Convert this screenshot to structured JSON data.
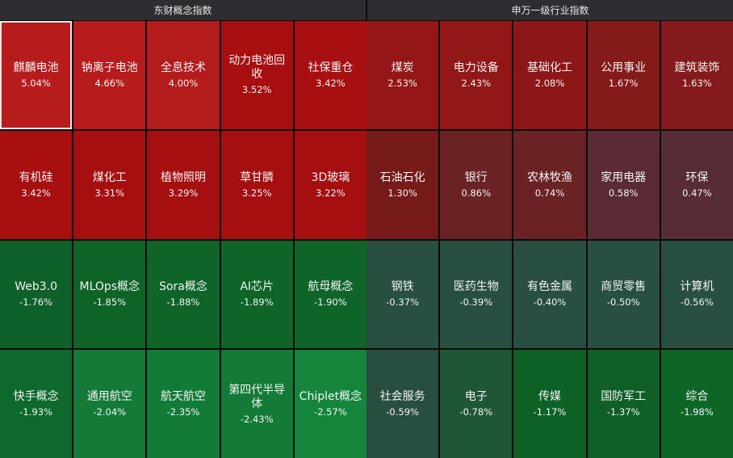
{
  "chart_data": [
    {
      "type": "heatmap",
      "title": "东财概念指数",
      "layout": {
        "rows": 4,
        "cols": 5
      },
      "cells": [
        {
          "name": "麒麟电池",
          "value": 5.04,
          "label": "5.04%",
          "color": "#b71c1c",
          "selected": true
        },
        {
          "name": "钠离子电池",
          "value": 4.66,
          "label": "4.66%",
          "color": "#b71b1c"
        },
        {
          "name": "全息技术",
          "value": 4.0,
          "label": "4.00%",
          "color": "#b41b1b"
        },
        {
          "name": "动力电池回收",
          "value": 3.52,
          "label": "3.52%",
          "color": "#a80f10"
        },
        {
          "name": "社保重仓",
          "value": 3.42,
          "label": "3.42%",
          "color": "#a70f10"
        },
        {
          "name": "有机硅",
          "value": 3.42,
          "label": "3.42%",
          "color": "#a70f10"
        },
        {
          "name": "煤化工",
          "value": 3.31,
          "label": "3.31%",
          "color": "#a60f10"
        },
        {
          "name": "植物照明",
          "value": 3.29,
          "label": "3.29%",
          "color": "#a60f10"
        },
        {
          "name": "草甘膦",
          "value": 3.25,
          "label": "3.25%",
          "color": "#a50f10"
        },
        {
          "name": "3D玻璃",
          "value": 3.22,
          "label": "3.22%",
          "color": "#a50f10"
        },
        {
          "name": "Web3.0",
          "value": -1.76,
          "label": "-1.76%",
          "color": "#0e6128"
        },
        {
          "name": "MLOps概念",
          "value": -1.85,
          "label": "-1.85%",
          "color": "#0e6329"
        },
        {
          "name": "Sora概念",
          "value": -1.88,
          "label": "-1.88%",
          "color": "#0e6429"
        },
        {
          "name": "AI芯片",
          "value": -1.89,
          "label": "-1.89%",
          "color": "#0e6429"
        },
        {
          "name": "航母概念",
          "value": -1.9,
          "label": "-1.90%",
          "color": "#0e6429"
        },
        {
          "name": "快手概念",
          "value": -1.93,
          "label": "-1.93%",
          "color": "#0e6a2c"
        },
        {
          "name": "通用航空",
          "value": -2.04,
          "label": "-2.04%",
          "color": "#137a38"
        },
        {
          "name": "航天航空",
          "value": -2.35,
          "label": "-2.35%",
          "color": "#137b38"
        },
        {
          "name": "第四代半导体",
          "value": -2.43,
          "label": "-2.43%",
          "color": "#137a37"
        },
        {
          "name": "Chiplet概念",
          "value": -2.57,
          "label": "-2.57%",
          "color": "#15853c"
        }
      ]
    },
    {
      "type": "heatmap",
      "title": "申万一级行业指数",
      "layout": {
        "rows": 4,
        "cols": 5
      },
      "cells": [
        {
          "name": "煤炭",
          "value": 2.53,
          "label": "2.53%",
          "color": "#951616"
        },
        {
          "name": "电力设备",
          "value": 2.43,
          "label": "2.43%",
          "color": "#921717"
        },
        {
          "name": "基础化工",
          "value": 2.08,
          "label": "2.08%",
          "color": "#8d1718"
        },
        {
          "name": "公用事业",
          "value": 1.67,
          "label": "1.67%",
          "color": "#851a1b"
        },
        {
          "name": "建筑装饰",
          "value": 1.63,
          "label": "1.63%",
          "color": "#841a1b"
        },
        {
          "name": "石油石化",
          "value": 1.3,
          "label": "1.30%",
          "color": "#761a1a"
        },
        {
          "name": "银行",
          "value": 0.86,
          "label": "0.86%",
          "color": "#6a2224"
        },
        {
          "name": "农林牧渔",
          "value": 0.74,
          "label": "0.74%",
          "color": "#6b2224"
        },
        {
          "name": "家用电器",
          "value": 0.58,
          "label": "0.58%",
          "color": "#5a2b34"
        },
        {
          "name": "环保",
          "value": 0.47,
          "label": "0.47%",
          "color": "#582c34"
        },
        {
          "name": "钢铁",
          "value": -0.37,
          "label": "-0.37%",
          "color": "#284f40"
        },
        {
          "name": "医药生物",
          "value": -0.39,
          "label": "-0.39%",
          "color": "#284f40"
        },
        {
          "name": "有色金属",
          "value": -0.4,
          "label": "-0.40%",
          "color": "#284f40"
        },
        {
          "name": "商贸零售",
          "value": -0.5,
          "label": "-0.50%",
          "color": "#284f40"
        },
        {
          "name": "计算机",
          "value": -0.56,
          "label": "-0.56%",
          "color": "#284f40"
        },
        {
          "name": "社会服务",
          "value": -0.59,
          "label": "-0.59%",
          "color": "#284e3f"
        },
        {
          "name": "电子",
          "value": -0.78,
          "label": "-0.78%",
          "color": "#1f5636"
        },
        {
          "name": "传媒",
          "value": -1.17,
          "label": "-1.17%",
          "color": "#0e6126"
        },
        {
          "name": "国防军工",
          "value": -1.37,
          "label": "-1.37%",
          "color": "#0f5f26"
        },
        {
          "name": "综合",
          "value": -1.98,
          "label": "-1.98%",
          "color": "#0e6626"
        }
      ]
    }
  ],
  "header": {
    "left_title": "东财概念指数",
    "right_title": "申万一级行业指数"
  }
}
